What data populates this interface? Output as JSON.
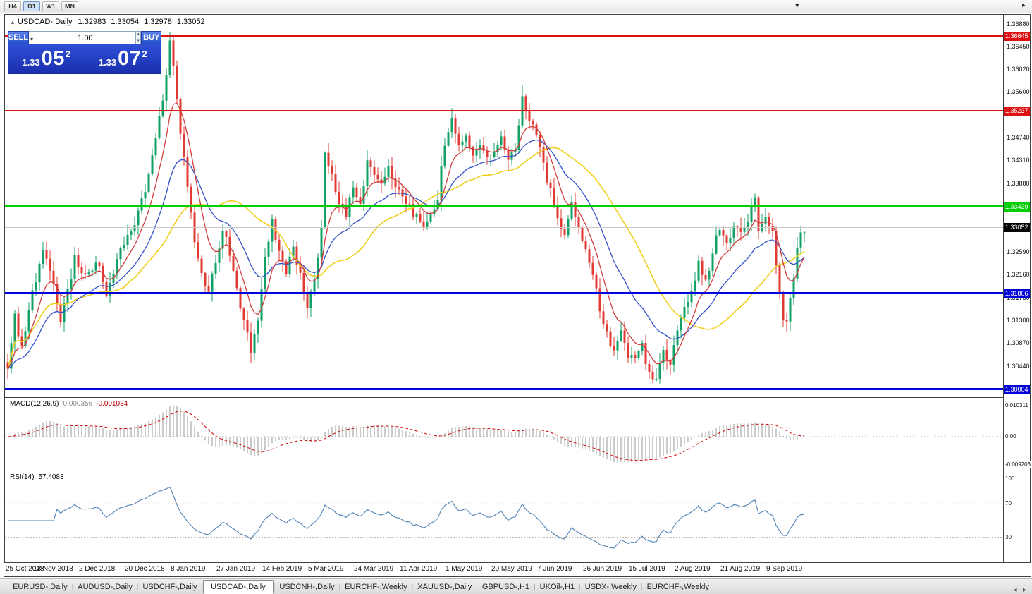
{
  "toolbar": {
    "timeframes": [
      "H4",
      "D1",
      "W1",
      "MN"
    ],
    "active_timeframe": "D1"
  },
  "quote_header": {
    "symbol_label": "USDCAD-,Daily",
    "open": "1.32983",
    "high": "1.33054",
    "low": "1.32978",
    "close": "1.33052"
  },
  "trade_panel": {
    "sell_label": "SELL",
    "buy_label": "BUY",
    "volume": "1.00",
    "bid": {
      "prefix": "1.33",
      "big": "05",
      "sup": "2"
    },
    "ask": {
      "prefix": "1.33",
      "big": "07",
      "sup": "2"
    }
  },
  "price_scale": {
    "ticks": [
      {
        "label": "1.36880",
        "value": 1.3688
      },
      {
        "label": "1.36450",
        "value": 1.3645
      },
      {
        "label": "1.36020",
        "value": 1.3602
      },
      {
        "label": "1.35600",
        "value": 1.356
      },
      {
        "label": "1.35170",
        "value": 1.3517
      },
      {
        "label": "1.34740",
        "value": 1.3474
      },
      {
        "label": "1.34310",
        "value": 1.3431
      },
      {
        "label": "1.33880",
        "value": 1.3388
      },
      {
        "label": "1.33450",
        "value": 1.3345
      },
      {
        "label": "1.33020",
        "value": 1.3302
      },
      {
        "label": "1.32590",
        "value": 1.3259
      },
      {
        "label": "1.32160",
        "value": 1.3216
      },
      {
        "label": "1.31730",
        "value": 1.3173
      },
      {
        "label": "1.31300",
        "value": 1.313
      },
      {
        "label": "1.30870",
        "value": 1.3087
      },
      {
        "label": "1.30440",
        "value": 1.3044
      }
    ],
    "levels": [
      {
        "label": "1.36645",
        "value": 1.36645,
        "color": "#dd1111",
        "line_width": 2
      },
      {
        "label": "1.35237",
        "value": 1.35237,
        "color": "#dd1111",
        "line_width": 2
      },
      {
        "label": "1.33439",
        "value": 1.33439,
        "color": "#00ce00",
        "line_width": 3
      },
      {
        "label": "1.31806",
        "value": 1.31806,
        "color": "#0000d8",
        "line_width": 3
      },
      {
        "label": "1.30004",
        "value": 1.30004,
        "color": "#0000d8",
        "line_width": 3
      }
    ],
    "current_price": {
      "label": "1.33052",
      "value": 1.33052,
      "color": "#000000"
    }
  },
  "macd_panel": {
    "name": "MACD(12,26,9)",
    "value_main": "0.000356",
    "value_signal": "-0.001034",
    "scale_top": {
      "label": "0.010311",
      "value": 0.010311
    },
    "scale_zero": {
      "label": "0.00",
      "value": 0
    },
    "scale_bottom": {
      "label": "-0.009203",
      "value": -0.009203
    }
  },
  "rsi_panel": {
    "name": "RSI(14)",
    "value": "57.4083",
    "scale": [
      {
        "label": "100",
        "value": 100
      },
      {
        "label": "70",
        "value": 70
      },
      {
        "label": "30",
        "value": 30
      }
    ],
    "levels": [
      70,
      30
    ]
  },
  "date_axis": [
    {
      "label": "25 Oct 2018",
      "day": 0
    },
    {
      "label": "13 Nov 2018",
      "day": 13
    },
    {
      "label": "2 Dec 2018",
      "day": 26
    },
    {
      "label": "20 Dec 2018",
      "day": 39
    },
    {
      "label": "8 Jan 2019",
      "day": 52
    },
    {
      "label": "27 Jan 2019",
      "day": 65
    },
    {
      "label": "14 Feb 2019",
      "day": 78
    },
    {
      "label": "5 Mar 2019",
      "day": 91
    },
    {
      "label": "24 Mar 2019",
      "day": 104
    },
    {
      "label": "11 Apr 2019",
      "day": 117
    },
    {
      "label": "1 May 2019",
      "day": 130
    },
    {
      "label": "20 May 2019",
      "day": 143
    },
    {
      "label": "7 Jun 2019",
      "day": 156
    },
    {
      "label": "26 Jun 2019",
      "day": 169
    },
    {
      "label": "15 Jul 2019",
      "day": 182
    },
    {
      "label": "2 Aug 2019",
      "day": 195
    },
    {
      "label": "21 Aug 2019",
      "day": 208
    },
    {
      "label": "9 Sep 2019",
      "day": 221
    }
  ],
  "tabs": {
    "items": [
      "EURUSD-,Daily",
      "AUDUSD-,Daily",
      "USDCHF-,Daily",
      "USDCAD-,Daily",
      "USDCNH-,Daily",
      "EURCHF-,Weekly",
      "XAUUSD-,Daily",
      "GBPUSD-,H1",
      "UKOil-,H1",
      "USDX-,Weekly",
      "EURCHF-,Weekly"
    ],
    "active": "USDCAD-,Daily"
  },
  "chart_data": {
    "type": "candlestick",
    "symbol": "USDCAD",
    "timeframe": "Daily",
    "days": 227,
    "price_anchors": [
      [
        0,
        1.3045
      ],
      [
        2,
        1.3135
      ],
      [
        4,
        1.308
      ],
      [
        7,
        1.318
      ],
      [
        10,
        1.3265
      ],
      [
        13,
        1.319
      ],
      [
        15,
        1.313
      ],
      [
        17,
        1.318
      ],
      [
        19,
        1.3245
      ],
      [
        22,
        1.321
      ],
      [
        25,
        1.3245
      ],
      [
        28,
        1.318
      ],
      [
        31,
        1.324
      ],
      [
        34,
        1.329
      ],
      [
        37,
        1.333
      ],
      [
        40,
        1.34
      ],
      [
        42,
        1.348
      ],
      [
        44,
        1.355
      ],
      [
        46,
        1.3648
      ],
      [
        47,
        1.36
      ],
      [
        49,
        1.348
      ],
      [
        51,
        1.339
      ],
      [
        53,
        1.328
      ],
      [
        55,
        1.3215
      ],
      [
        57,
        1.3185
      ],
      [
        59,
        1.324
      ],
      [
        61,
        1.33
      ],
      [
        63,
        1.326
      ],
      [
        65,
        1.319
      ],
      [
        67,
        1.313
      ],
      [
        69,
        1.3078
      ],
      [
        71,
        1.313
      ],
      [
        73,
        1.324
      ],
      [
        75,
        1.3315
      ],
      [
        77,
        1.326
      ],
      [
        79,
        1.3225
      ],
      [
        81,
        1.327
      ],
      [
        83,
        1.321
      ],
      [
        85,
        1.3155
      ],
      [
        87,
        1.32
      ],
      [
        89,
        1.331
      ],
      [
        90,
        1.345
      ],
      [
        92,
        1.34
      ],
      [
        94,
        1.3345
      ],
      [
        96,
        1.332
      ],
      [
        98,
        1.3385
      ],
      [
        100,
        1.3355
      ],
      [
        102,
        1.3425
      ],
      [
        104,
        1.3405
      ],
      [
        106,
        1.338
      ],
      [
        108,
        1.3415
      ],
      [
        110,
        1.3385
      ],
      [
        112,
        1.336
      ],
      [
        114,
        1.334
      ],
      [
        116,
        1.332
      ],
      [
        118,
        1.3302
      ],
      [
        120,
        1.333
      ],
      [
        122,
        1.336
      ],
      [
        124,
        1.3465
      ],
      [
        126,
        1.3505
      ],
      [
        128,
        1.3455
      ],
      [
        130,
        1.3475
      ],
      [
        132,
        1.3442
      ],
      [
        134,
        1.346
      ],
      [
        136,
        1.3432
      ],
      [
        138,
        1.3455
      ],
      [
        140,
        1.3478
      ],
      [
        142,
        1.3432
      ],
      [
        144,
        1.3455
      ],
      [
        146,
        1.3552
      ],
      [
        148,
        1.3512
      ],
      [
        150,
        1.347
      ],
      [
        152,
        1.3422
      ],
      [
        154,
        1.3372
      ],
      [
        156,
        1.3322
      ],
      [
        158,
        1.3292
      ],
      [
        160,
        1.335
      ],
      [
        162,
        1.3312
      ],
      [
        164,
        1.3262
      ],
      [
        166,
        1.3212
      ],
      [
        168,
        1.3152
      ],
      [
        170,
        1.3102
      ],
      [
        172,
        1.3072
      ],
      [
        174,
        1.3112
      ],
      [
        176,
        1.3066
      ],
      [
        178,
        1.3052
      ],
      [
        180,
        1.3082
      ],
      [
        182,
        1.3032
      ],
      [
        184,
        1.3022
      ],
      [
        186,
        1.3072
      ],
      [
        188,
        1.3042
      ],
      [
        190,
        1.3112
      ],
      [
        192,
        1.3152
      ],
      [
        194,
        1.3192
      ],
      [
        196,
        1.3232
      ],
      [
        198,
        1.3202
      ],
      [
        200,
        1.3262
      ],
      [
        202,
        1.3302
      ],
      [
        204,
        1.3272
      ],
      [
        206,
        1.3312
      ],
      [
        208,
        1.3292
      ],
      [
        210,
        1.3322
      ],
      [
        212,
        1.3352
      ],
      [
        213,
        1.3302
      ],
      [
        215,
        1.3322
      ],
      [
        217,
        1.3292
      ],
      [
        218,
        1.3232
      ],
      [
        219,
        1.3172
      ],
      [
        220,
        1.3132
      ],
      [
        221,
        1.3118
      ],
      [
        222,
        1.3162
      ],
      [
        223,
        1.3212
      ],
      [
        224,
        1.3262
      ],
      [
        225,
        1.3292
      ],
      [
        226,
        1.3305
      ]
    ],
    "indicators": {
      "moving_averages": [
        {
          "type": "EMA",
          "period": 8,
          "color": "#d23b3b"
        },
        {
          "type": "EMA",
          "period": 21,
          "color": "#3352c8"
        },
        {
          "type": "SMA",
          "period": 34,
          "color": "#f0ce1c"
        }
      ],
      "macd": {
        "fast": 12,
        "slow": 26,
        "signal": 9
      },
      "rsi": {
        "period": 14
      }
    },
    "colors": {
      "up": "#12a066",
      "down": "#e03a33",
      "macd_hist": "#999999",
      "macd_signal": "#cc0000",
      "rsi_line": "#4f81b4",
      "current_line": "#c8c8c8"
    }
  }
}
